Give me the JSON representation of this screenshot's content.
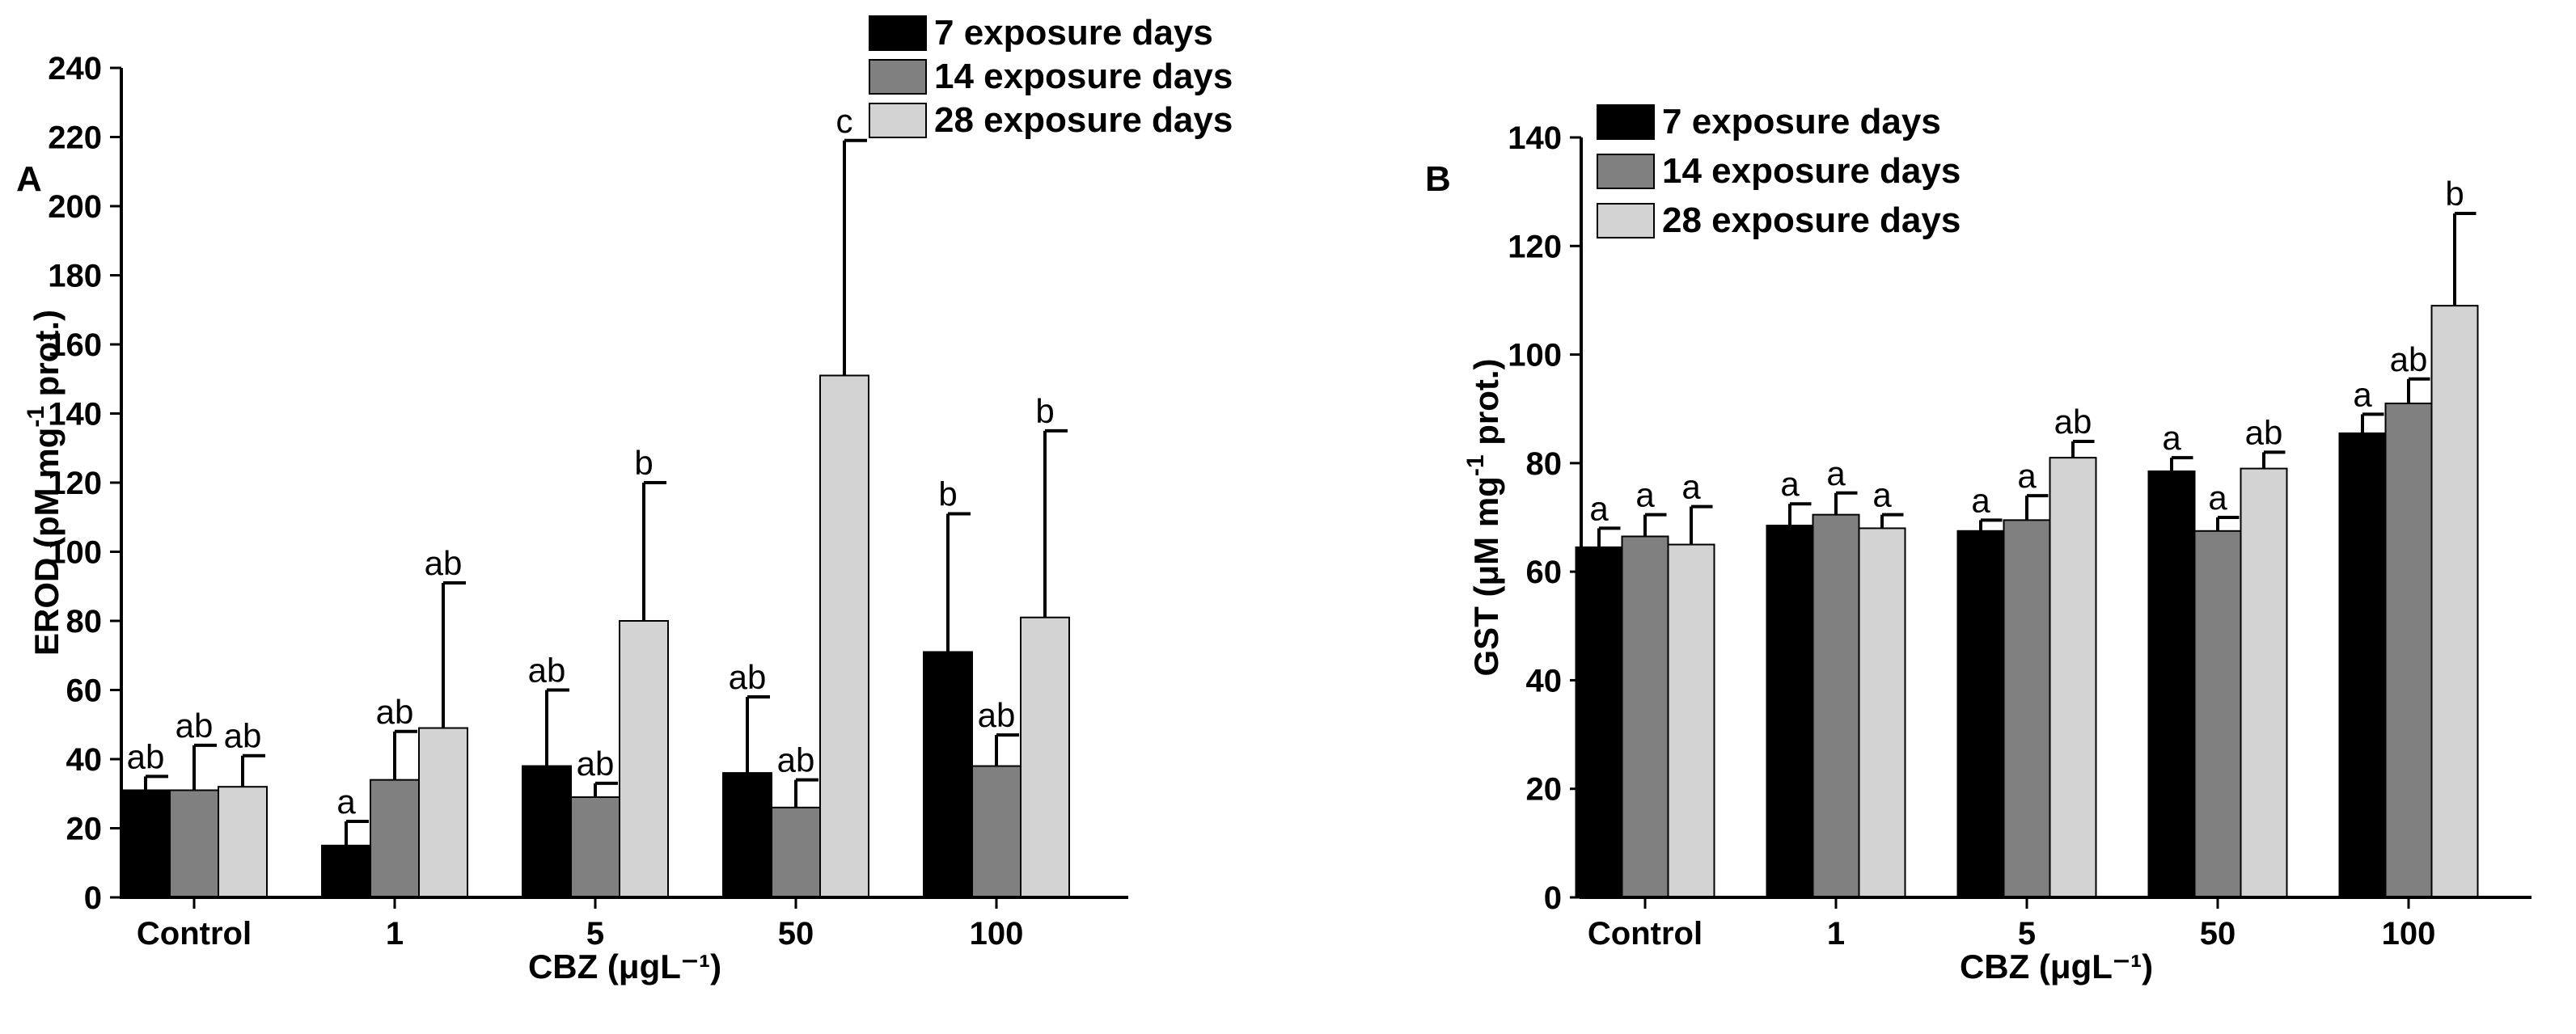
{
  "chart_data": [
    {
      "type": "bar",
      "panel": "A",
      "title": "",
      "xlabel": "CBZ (μgL⁻¹)",
      "ylabel_main": "EROD (pM mg",
      "ylabel_sup": "-1",
      "ylabel_tail": " prot.)",
      "ylim": [
        0,
        240
      ],
      "yticks": [
        "0",
        "20",
        "40",
        "60",
        "80",
        "100",
        "120",
        "140",
        "160",
        "180",
        "200",
        "220",
        "240"
      ],
      "categories": [
        "Control",
        "1",
        "5",
        "50",
        "100"
      ],
      "legend_position": "top-center",
      "series": [
        {
          "name": "7 exposure days",
          "color": "#000000",
          "values": [
            31,
            15,
            38,
            36,
            71
          ],
          "errors": [
            4,
            7,
            22,
            22,
            40
          ],
          "labels": [
            "ab",
            "a",
            "ab",
            "ab",
            "b"
          ]
        },
        {
          "name": "14 exposure days",
          "color": "#808080",
          "values": [
            31,
            34,
            29,
            26,
            38
          ],
          "errors": [
            13,
            14,
            4,
            8,
            9
          ],
          "labels": [
            "ab",
            "ab",
            "ab",
            "ab",
            "ab"
          ]
        },
        {
          "name": "28 exposure days",
          "color": "#d3d3d3",
          "values": [
            32,
            49,
            80,
            151,
            81
          ],
          "errors": [
            9,
            42,
            40,
            68,
            54
          ],
          "labels": [
            "ab",
            "ab",
            "b",
            "c",
            "b"
          ]
        }
      ]
    },
    {
      "type": "bar",
      "panel": "B",
      "title": "",
      "xlabel": "CBZ (μgL⁻¹)",
      "ylabel_main": "GST (μM mg",
      "ylabel_sup": "-1",
      "ylabel_tail": " prot.)",
      "ylim": [
        0,
        140
      ],
      "yticks": [
        "0",
        "20",
        "40",
        "60",
        "80",
        "100",
        "120",
        "140"
      ],
      "categories": [
        "Control",
        "1",
        "5",
        "50",
        "100"
      ],
      "legend_position": "top-left",
      "series": [
        {
          "name": "7 exposure days",
          "color": "#000000",
          "values": [
            64.5,
            68.5,
            67.5,
            78.5,
            85.5
          ],
          "errors": [
            3.5,
            4.0,
            2.0,
            2.5,
            3.5
          ],
          "labels": [
            "a",
            "a",
            "a",
            "a",
            "a"
          ]
        },
        {
          "name": "14 exposure days",
          "color": "#808080",
          "values": [
            66.5,
            70.5,
            69.5,
            67.5,
            91
          ],
          "errors": [
            4.0,
            4.0,
            4.5,
            2.5,
            4.5
          ],
          "labels": [
            "a",
            "a",
            "a",
            "a",
            "ab"
          ]
        },
        {
          "name": "28 exposure days",
          "color": "#d3d3d3",
          "values": [
            65,
            68,
            81,
            79,
            109
          ],
          "errors": [
            7.0,
            2.5,
            3.0,
            3.0,
            17
          ],
          "labels": [
            "a",
            "a",
            "ab",
            "ab",
            "b"
          ]
        }
      ]
    }
  ]
}
